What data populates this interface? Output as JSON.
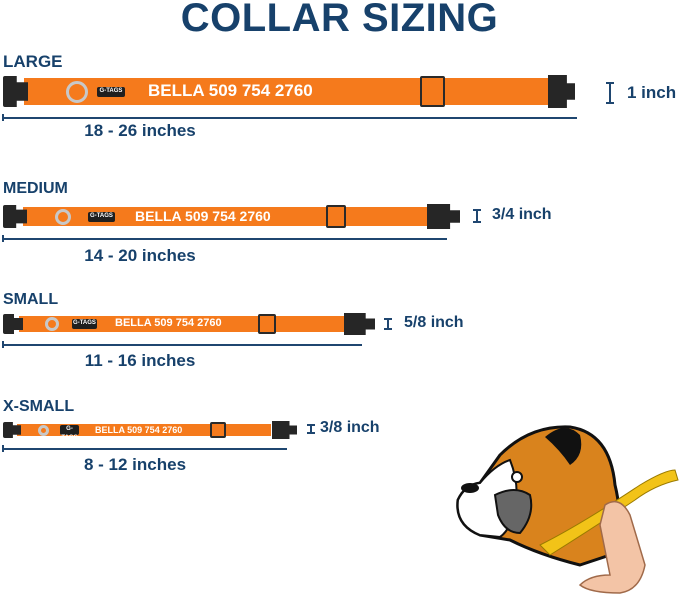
{
  "title": "COLLAR SIZING",
  "brand_tag": "G-TAGS",
  "collar_text": "BELLA 509 754 2760",
  "colors": {
    "strap": "#f57a1c",
    "text": "#17416b",
    "buckle": "#262626"
  },
  "sizes": [
    {
      "name": "LARGE",
      "range": "18 - 26 inches",
      "width": "1 inch"
    },
    {
      "name": "MEDIUM",
      "range": "14 - 20 inches",
      "width": "3/4 inch"
    },
    {
      "name": "SMALL",
      "range": "11 - 16 inches",
      "width": "5/8 inch"
    },
    {
      "name": "X-SMALL",
      "range": "8 - 12 inches",
      "width": "3/8 inch"
    }
  ],
  "illustration": "boxer-dog-with-measuring-tape"
}
